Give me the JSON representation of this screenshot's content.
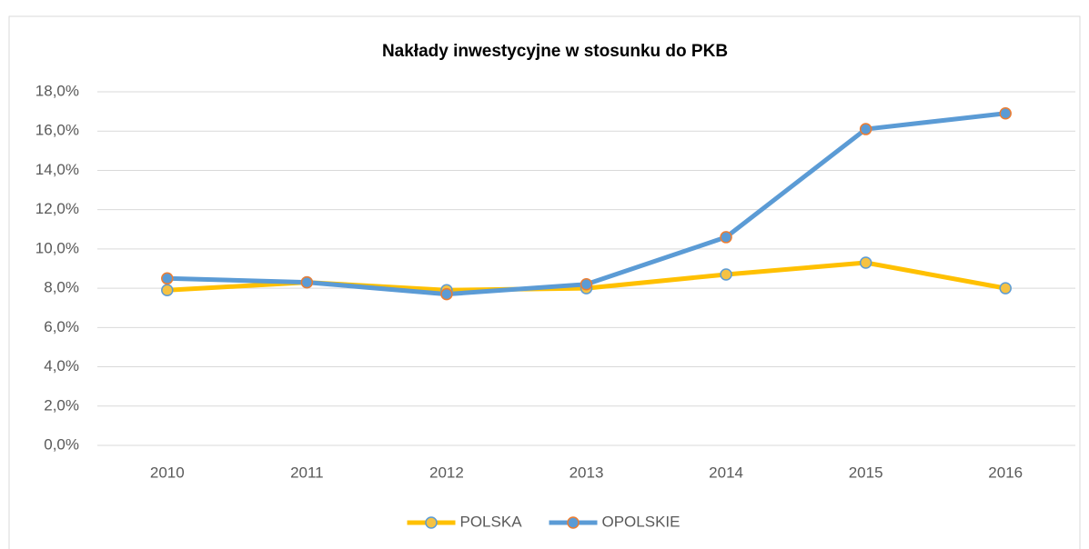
{
  "chart_data": {
    "type": "line",
    "title": "Nakłady inwestycyjne w stosunku do PKB",
    "categories": [
      "2010",
      "2011",
      "2012",
      "2013",
      "2014",
      "2015",
      "2016"
    ],
    "series": [
      {
        "name": "POLSKA",
        "color": "#ffc000",
        "marker_fill": "#f5c243",
        "marker_edge": "#5b9bd5",
        "values": [
          7.9,
          8.3,
          7.9,
          8.0,
          8.7,
          9.3,
          8.0
        ]
      },
      {
        "name": "OPOLSKIE",
        "color": "#5b9bd5",
        "marker_fill": "#5b9bd5",
        "marker_edge": "#ed7d31",
        "values": [
          8.5,
          8.3,
          7.7,
          8.2,
          10.6,
          16.1,
          16.9
        ]
      }
    ],
    "ylim": [
      0,
      18
    ],
    "yticks": [
      {
        "value": 0,
        "label": "0,0%"
      },
      {
        "value": 2,
        "label": "2,0%"
      },
      {
        "value": 4,
        "label": "4,0%"
      },
      {
        "value": 6,
        "label": "6,0%"
      },
      {
        "value": 8,
        "label": "8,0%"
      },
      {
        "value": 10,
        "label": "10,0%"
      },
      {
        "value": 12,
        "label": "12,0%"
      },
      {
        "value": 14,
        "label": "14,0%"
      },
      {
        "value": 16,
        "label": "16,0%"
      },
      {
        "value": 18,
        "label": "18,0%"
      }
    ],
    "grid": true,
    "legend": "bottom"
  }
}
